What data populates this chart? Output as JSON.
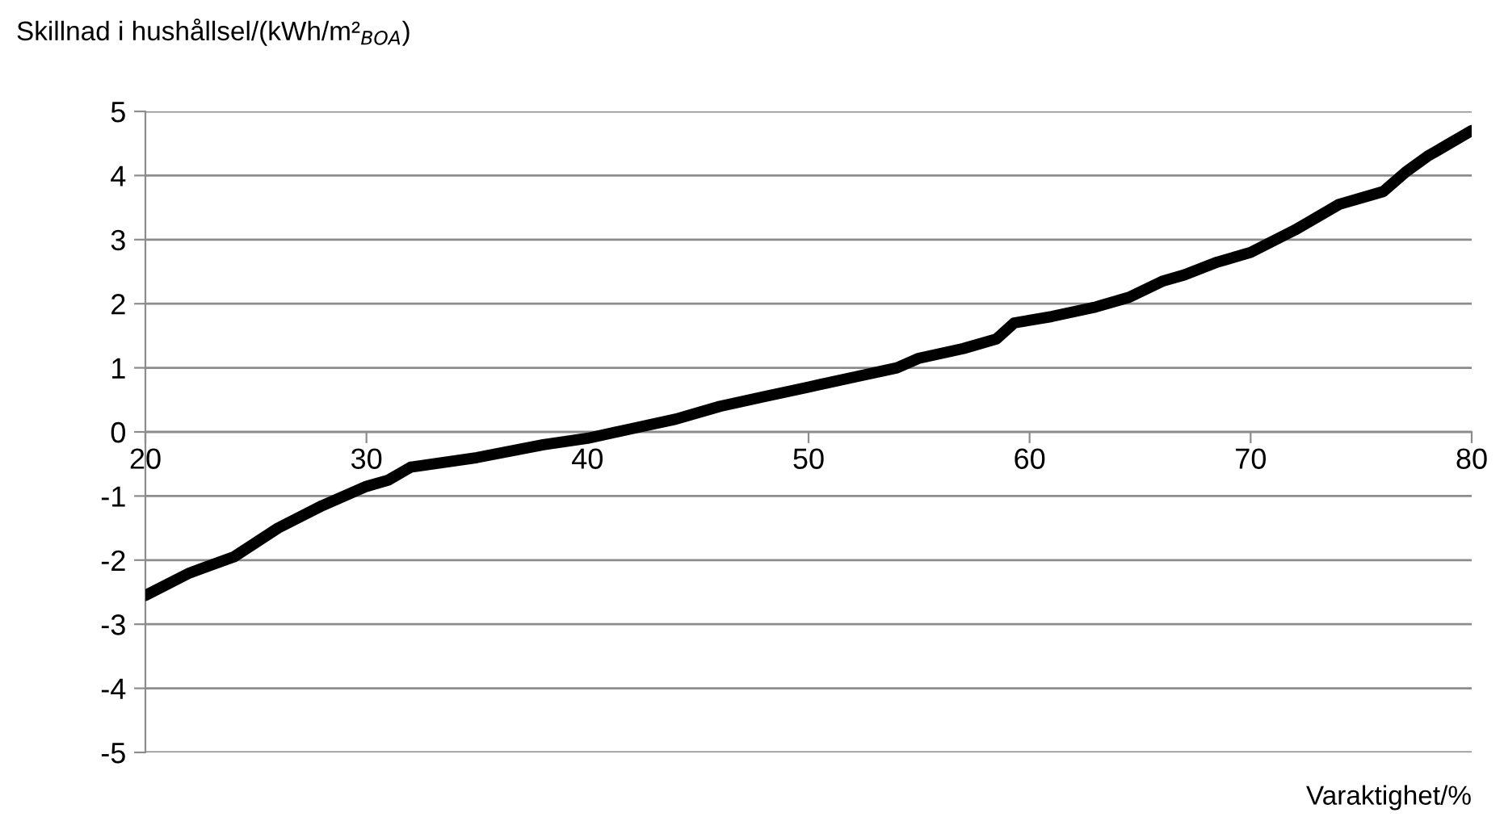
{
  "chart_data": {
    "type": "line",
    "ylabel": "Skillnad i hushållsel/(kWh/m²$_{BOA}$)",
    "xlabel": "Varaktighet/%",
    "series": [
      {
        "color": "#000000",
        "x": [
          20,
          22,
          24,
          26,
          28,
          30,
          31,
          32,
          35,
          38,
          40,
          42,
          44,
          46,
          48,
          50,
          52,
          54,
          55,
          57,
          58.5,
          59.3,
          61,
          63,
          64.5,
          66,
          67,
          68.5,
          70,
          72,
          74,
          76,
          77,
          78,
          80
        ],
        "values": [
          -2.55,
          -2.2,
          -1.95,
          -1.5,
          -1.15,
          -0.85,
          -0.75,
          -0.55,
          -0.4,
          -0.2,
          -0.1,
          0.05,
          0.2,
          0.4,
          0.55,
          0.7,
          0.85,
          1.0,
          1.15,
          1.3,
          1.45,
          1.7,
          1.8,
          1.95,
          2.1,
          2.35,
          2.45,
          2.65,
          2.8,
          3.15,
          3.55,
          3.75,
          4.05,
          4.3,
          4.7
        ]
      }
    ],
    "xlim": [
      20,
      80
    ],
    "xticks": [
      20,
      30,
      40,
      50,
      60,
      70,
      80
    ],
    "ylim": [
      -5,
      5
    ],
    "yticks": [
      -5,
      -4,
      -3,
      -2,
      -1,
      0,
      1,
      2,
      3,
      4,
      5
    ],
    "grid": "y",
    "legend": false,
    "marker": "none",
    "line_style": "solid"
  }
}
